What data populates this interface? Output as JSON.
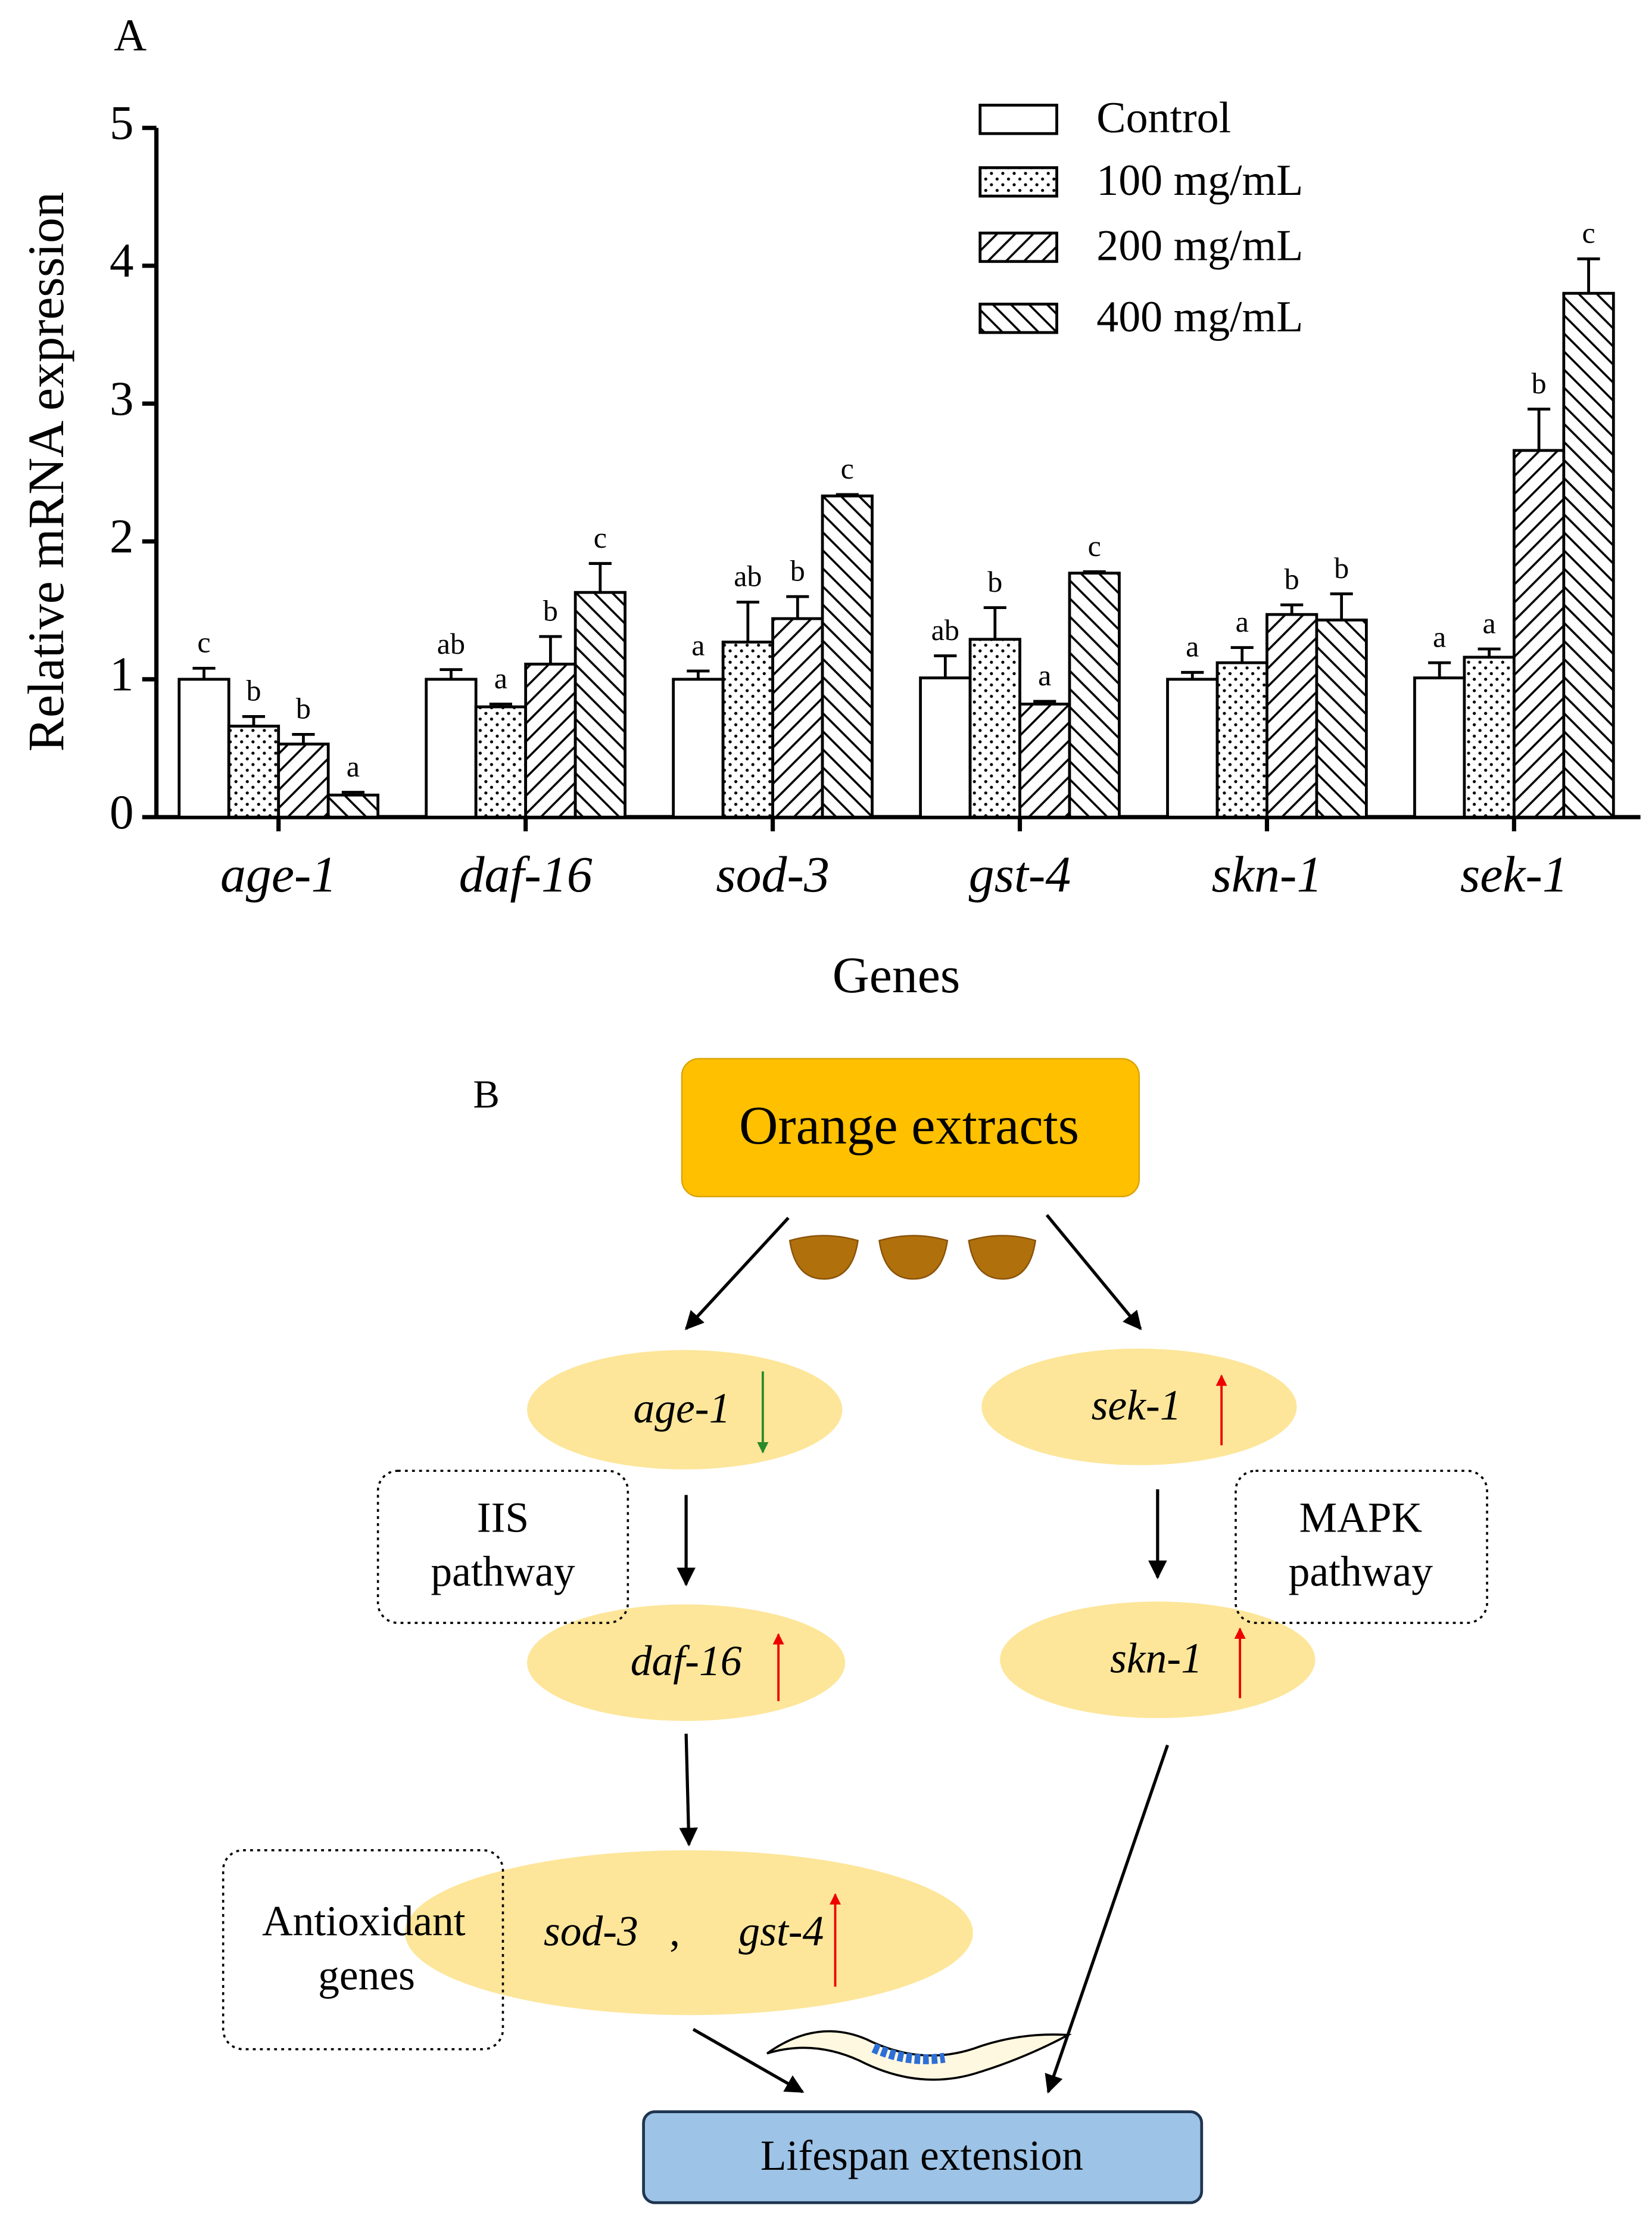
{
  "chart_data": {
    "type": "bar",
    "panel_label": "A",
    "ylabel": "Relative  mRNA expression",
    "xlabel": "Genes",
    "categories": [
      "age-1",
      "daf-16",
      "sod-3",
      "gst-4",
      "skn-1",
      "sek-1"
    ],
    "ylim": [
      0,
      5
    ],
    "yticks": [
      0,
      1,
      2,
      3,
      4,
      5
    ],
    "grid": false,
    "legend": "upper right",
    "series": [
      {
        "name": "Control",
        "color": "#000000",
        "pattern": "open",
        "values": [
          1.0,
          1.0,
          1.0,
          1.01,
          1.0,
          1.01
        ],
        "errors": [
          0.08,
          0.07,
          0.06,
          0.16,
          0.05,
          0.11
        ],
        "significance": [
          "c",
          "ab",
          "a",
          "ab",
          "a",
          "a"
        ]
      },
      {
        "name": "100 mg/mL",
        "color": "#000000",
        "pattern": "dots",
        "values": [
          0.66,
          0.8,
          1.27,
          1.29,
          1.12,
          1.16
        ],
        "errors": [
          0.07,
          0.02,
          0.29,
          0.23,
          0.11,
          0.06
        ],
        "significance": [
          "b",
          "a",
          "ab",
          "b",
          "a",
          "a"
        ]
      },
      {
        "name": "200 mg/mL",
        "color": "#000000",
        "pattern": "hatch-right",
        "values": [
          0.53,
          1.11,
          1.44,
          0.82,
          1.47,
          2.66
        ],
        "errors": [
          0.07,
          0.2,
          0.16,
          0.02,
          0.07,
          0.3
        ],
        "significance": [
          "b",
          "b",
          "b",
          "a",
          "b",
          "b"
        ]
      },
      {
        "name": "400 mg/mL",
        "color": "#000000",
        "pattern": "hatch-left",
        "values": [
          0.16,
          1.63,
          2.33,
          1.77,
          1.43,
          3.8
        ],
        "errors": [
          0.02,
          0.21,
          0.01,
          0.01,
          0.19,
          0.25
        ],
        "significance": [
          "a",
          "c",
          "c",
          "c",
          "b",
          "c"
        ]
      }
    ]
  },
  "diagram": {
    "panel_label": "B",
    "source": "Orange extracts",
    "nodes": [
      "age-1",
      "sek-1",
      "daf-16",
      "skn-1",
      "sod-3",
      ",",
      "gst-4"
    ],
    "boxes": [
      [
        "IIS",
        "pathway"
      ],
      [
        "MAPK",
        "pathway"
      ],
      [
        "Antioxidant",
        "genes"
      ]
    ],
    "outcome": "Lifespan extension"
  }
}
